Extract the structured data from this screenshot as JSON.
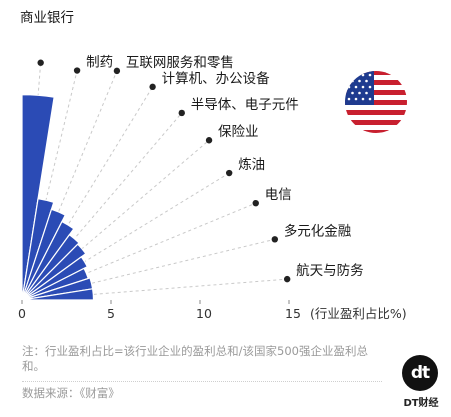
{
  "chart_data": {
    "type": "polar_area",
    "categories": [
      "商业银行",
      "制药",
      "互联网服务和零售",
      "计算机、办公设备",
      "半导体、电子元件",
      "保险业",
      "炼油",
      "电信",
      "多元化金融",
      "航天与防务"
    ],
    "values": [
      11.2,
      5.6,
      5.2,
      4.8,
      4.4,
      4.3,
      4.0,
      3.8,
      3.9,
      3.9
    ],
    "x_ticks": [
      "0",
      "5",
      "10",
      "15"
    ],
    "x_unit_label": "(行业盈利占比%)",
    "xlim": [
      0,
      15
    ],
    "bar_color": "#2b4bb5",
    "radial_line_color": "#c9c9c9"
  },
  "note": "注：行业盈利占比=该行业企业的盈利总和/该国家500强企业盈利总和。",
  "source": "数据来源：《财富》",
  "brand": {
    "logo_text": "dt",
    "name": "DT财经"
  },
  "flag": "美国国旗"
}
